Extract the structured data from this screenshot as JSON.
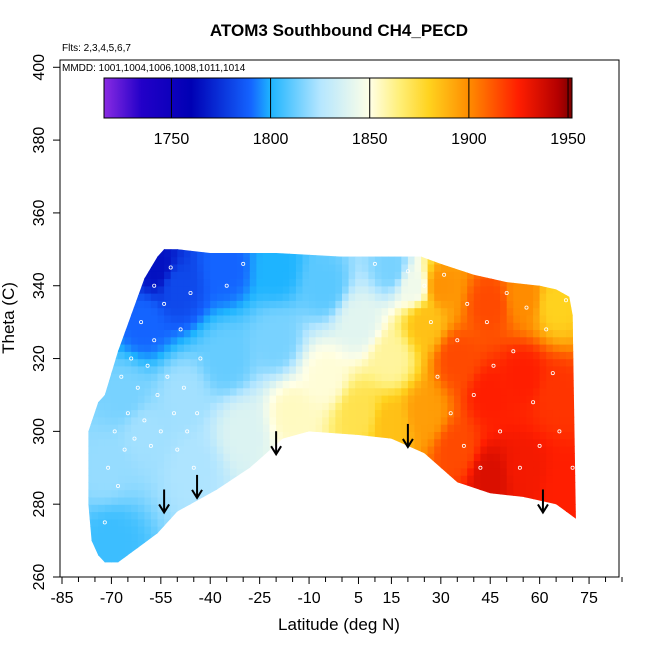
{
  "chart_data": {
    "type": "heatmap",
    "title": "ATOM3 Southbound CH4_PECD",
    "annotations": {
      "flights": "Flts: 2,3,4,5,6,7",
      "dates": "MMDD: 1001,1004,1006,1008,1011,1014"
    },
    "xlabel": "Latitude (deg N)",
    "ylabel": "Theta (C)",
    "xlim": [
      -85,
      85
    ],
    "ylim": [
      260,
      402
    ],
    "x_ticks": [
      -85,
      -70,
      -55,
      -40,
      -25,
      -10,
      5,
      15,
      30,
      45,
      60,
      75
    ],
    "x_ticks_minor": [
      -80,
      -75,
      -65,
      -60,
      -50,
      -45,
      -35,
      -30,
      -20,
      -15,
      -5,
      0,
      10,
      20,
      25,
      35,
      40,
      50,
      55,
      65,
      70,
      80,
      85
    ],
    "y_ticks": [
      260,
      280,
      300,
      320,
      340,
      360,
      380,
      400
    ],
    "colorbar": {
      "min": 1716,
      "max": 1952,
      "ticks": [
        1750,
        1800,
        1850,
        1900,
        1950
      ],
      "stops": [
        {
          "value": 1716,
          "color": "#8a2be2"
        },
        {
          "value": 1735,
          "color": "#2200c8"
        },
        {
          "value": 1760,
          "color": "#0000b4"
        },
        {
          "value": 1790,
          "color": "#1464ff"
        },
        {
          "value": 1800,
          "color": "#1eb4ff"
        },
        {
          "value": 1825,
          "color": "#b4e6ff"
        },
        {
          "value": 1850,
          "color": "#ffffe6"
        },
        {
          "value": 1865,
          "color": "#ffef78"
        },
        {
          "value": 1880,
          "color": "#ffd21e"
        },
        {
          "value": 1900,
          "color": "#ff8c00"
        },
        {
          "value": 1925,
          "color": "#ff1e00"
        },
        {
          "value": 1945,
          "color": "#b40000"
        },
        {
          "value": 1952,
          "color": "#7a0000"
        }
      ]
    },
    "arrows_at_latitude": [
      {
        "lat": -54,
        "theta": 278
      },
      {
        "lat": -44,
        "theta": 282
      },
      {
        "lat": -20,
        "theta": 294
      },
      {
        "lat": 20,
        "theta": 296
      },
      {
        "lat": 61,
        "theta": 278
      }
    ],
    "domain_top": [
      [
        -72,
        310
      ],
      [
        -68,
        322
      ],
      [
        -64,
        332
      ],
      [
        -60,
        342
      ],
      [
        -56,
        348
      ],
      [
        -54,
        350
      ],
      [
        -50,
        350
      ],
      [
        -40,
        349
      ],
      [
        -20,
        349
      ],
      [
        0,
        348
      ],
      [
        10,
        348
      ],
      [
        24,
        348
      ],
      [
        30,
        346
      ],
      [
        40,
        343
      ],
      [
        50,
        341
      ],
      [
        60,
        340
      ],
      [
        65,
        339
      ],
      [
        69,
        337
      ],
      [
        70,
        332
      ]
    ],
    "domain_bottom": [
      [
        71,
        276
      ],
      [
        65,
        280
      ],
      [
        55,
        282
      ],
      [
        45,
        283
      ],
      [
        35,
        286
      ],
      [
        25,
        294
      ],
      [
        15,
        298
      ],
      [
        5,
        299
      ],
      [
        -10,
        300
      ],
      [
        -18,
        298
      ],
      [
        -28,
        290
      ],
      [
        -38,
        284
      ],
      [
        -46,
        280
      ],
      [
        -50,
        278
      ],
      [
        -52,
        276
      ],
      [
        -56,
        272
      ],
      [
        -62,
        268
      ],
      [
        -68,
        264
      ],
      [
        -72,
        264
      ],
      [
        -74,
        266
      ],
      [
        -76,
        270
      ],
      [
        -77,
        280
      ],
      [
        -77,
        300
      ],
      [
        -74,
        308
      ]
    ],
    "field_samples": [
      {
        "lat": -72,
        "theta": 290,
        "ch4": 1820
      },
      {
        "lat": -70,
        "theta": 270,
        "ch4": 1805
      },
      {
        "lat": -66,
        "theta": 310,
        "ch4": 1815
      },
      {
        "lat": -60,
        "theta": 330,
        "ch4": 1790
      },
      {
        "lat": -56,
        "theta": 345,
        "ch4": 1765
      },
      {
        "lat": -60,
        "theta": 300,
        "ch4": 1822
      },
      {
        "lat": -50,
        "theta": 340,
        "ch4": 1782
      },
      {
        "lat": -48,
        "theta": 310,
        "ch4": 1822
      },
      {
        "lat": -45,
        "theta": 290,
        "ch4": 1824
      },
      {
        "lat": -35,
        "theta": 345,
        "ch4": 1790
      },
      {
        "lat": -35,
        "theta": 320,
        "ch4": 1812
      },
      {
        "lat": -30,
        "theta": 300,
        "ch4": 1838
      },
      {
        "lat": -20,
        "theta": 345,
        "ch4": 1800
      },
      {
        "lat": -20,
        "theta": 325,
        "ch4": 1815
      },
      {
        "lat": -15,
        "theta": 305,
        "ch4": 1855
      },
      {
        "lat": -5,
        "theta": 340,
        "ch4": 1810
      },
      {
        "lat": -5,
        "theta": 315,
        "ch4": 1852
      },
      {
        "lat": 5,
        "theta": 330,
        "ch4": 1840
      },
      {
        "lat": 5,
        "theta": 305,
        "ch4": 1872
      },
      {
        "lat": 15,
        "theta": 345,
        "ch4": 1815
      },
      {
        "lat": 15,
        "theta": 320,
        "ch4": 1860
      },
      {
        "lat": 15,
        "theta": 302,
        "ch4": 1885
      },
      {
        "lat": 22,
        "theta": 340,
        "ch4": 1845
      },
      {
        "lat": 25,
        "theta": 330,
        "ch4": 1885
      },
      {
        "lat": 25,
        "theta": 305,
        "ch4": 1895
      },
      {
        "lat": 30,
        "theta": 340,
        "ch4": 1898
      },
      {
        "lat": 35,
        "theta": 320,
        "ch4": 1915
      },
      {
        "lat": 35,
        "theta": 295,
        "ch4": 1915
      },
      {
        "lat": 45,
        "theta": 335,
        "ch4": 1915
      },
      {
        "lat": 45,
        "theta": 310,
        "ch4": 1925
      },
      {
        "lat": 45,
        "theta": 288,
        "ch4": 1935
      },
      {
        "lat": 55,
        "theta": 337,
        "ch4": 1900
      },
      {
        "lat": 55,
        "theta": 315,
        "ch4": 1925
      },
      {
        "lat": 55,
        "theta": 290,
        "ch4": 1928
      },
      {
        "lat": 65,
        "theta": 335,
        "ch4": 1880
      },
      {
        "lat": 65,
        "theta": 310,
        "ch4": 1920
      },
      {
        "lat": 68,
        "theta": 285,
        "ch4": 1925
      }
    ],
    "observations": [
      [
        -72,
        275
      ],
      [
        -71,
        290
      ],
      [
        -69,
        300
      ],
      [
        -68,
        285
      ],
      [
        -67,
        315
      ],
      [
        -66,
        295
      ],
      [
        -65,
        305
      ],
      [
        -64,
        320
      ],
      [
        -63,
        298
      ],
      [
        -62,
        312
      ],
      [
        -61,
        330
      ],
      [
        -60,
        303
      ],
      [
        -59,
        318
      ],
      [
        -58,
        296
      ],
      [
        -57,
        325
      ],
      [
        -57,
        340
      ],
      [
        -56,
        310
      ],
      [
        -55,
        300
      ],
      [
        -54,
        335
      ],
      [
        -53,
        315
      ],
      [
        -52,
        345
      ],
      [
        -51,
        305
      ],
      [
        -50,
        295
      ],
      [
        -49,
        328
      ],
      [
        -48,
        312
      ],
      [
        -47,
        300
      ],
      [
        -46,
        338
      ],
      [
        -45,
        290
      ],
      [
        -44,
        305
      ],
      [
        -43,
        320
      ],
      [
        25,
        340
      ],
      [
        27,
        330
      ],
      [
        29,
        315
      ],
      [
        31,
        343
      ],
      [
        33,
        305
      ],
      [
        35,
        325
      ],
      [
        37,
        296
      ],
      [
        38,
        335
      ],
      [
        40,
        310
      ],
      [
        42,
        290
      ],
      [
        44,
        330
      ],
      [
        46,
        318
      ],
      [
        48,
        300
      ],
      [
        50,
        338
      ],
      [
        52,
        322
      ],
      [
        54,
        290
      ],
      [
        56,
        334
      ],
      [
        58,
        308
      ],
      [
        60,
        296
      ],
      [
        62,
        328
      ],
      [
        64,
        316
      ],
      [
        66,
        300
      ],
      [
        68,
        336
      ],
      [
        70,
        290
      ],
      [
        -35,
        340
      ],
      [
        -30,
        346
      ],
      [
        10,
        346
      ],
      [
        20,
        344
      ]
    ]
  }
}
